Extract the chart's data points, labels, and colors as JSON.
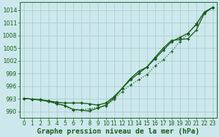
{
  "background_color": "#cce8ec",
  "grid_color": "#b0d4d8",
  "line_color": "#1a5c1a",
  "marker_color": "#1a5c1a",
  "xlabel": "Graphe pression niveau de la mer (hPa)",
  "xlabel_fontsize": 7.5,
  "tick_fontsize": 6.5,
  "xlim": [
    -0.5,
    23.5
  ],
  "ylim": [
    988.5,
    1015.8
  ],
  "yticks": [
    990,
    993,
    996,
    999,
    1002,
    1005,
    1008,
    1011,
    1014
  ],
  "xticks": [
    0,
    1,
    2,
    3,
    4,
    5,
    6,
    7,
    8,
    9,
    10,
    11,
    12,
    13,
    14,
    15,
    16,
    17,
    18,
    19,
    20,
    21,
    22,
    23
  ],
  "series1_x": [
    0,
    1,
    2,
    3,
    4,
    5,
    6,
    7,
    8,
    9,
    10,
    11,
    12,
    13,
    14,
    15,
    16,
    17,
    18,
    19,
    20,
    21,
    22,
    23
  ],
  "series1_y": [
    993.1,
    992.9,
    992.7,
    992.3,
    991.8,
    991.3,
    990.2,
    990.4,
    990.6,
    991.0,
    991.3,
    992.9,
    994.7,
    996.3,
    997.5,
    998.7,
    1000.8,
    1002.2,
    1004.2,
    1006.5,
    1008.3,
    1010.8,
    1013.5,
    1014.6
  ],
  "series2_x": [
    0,
    1,
    2,
    3,
    4,
    5,
    6,
    7,
    8,
    9,
    10,
    11,
    12,
    13,
    14,
    15,
    16,
    17,
    18,
    19,
    20,
    21,
    22,
    23
  ],
  "series2_y": [
    993.1,
    992.9,
    992.8,
    992.5,
    992.2,
    992.0,
    992.0,
    992.0,
    991.8,
    991.5,
    992.0,
    993.5,
    995.5,
    997.5,
    999.0,
    1000.5,
    1002.5,
    1004.5,
    1006.5,
    1007.5,
    1008.5,
    1010.5,
    1013.5,
    1014.6
  ],
  "series3_x": [
    0,
    1,
    2,
    3,
    4,
    5,
    6,
    7,
    8,
    9,
    10,
    11,
    12,
    13,
    14,
    15,
    16,
    17,
    18,
    19,
    20,
    21,
    22,
    23
  ],
  "series3_y": [
    993.1,
    992.9,
    992.7,
    992.4,
    991.9,
    991.4,
    990.5,
    990.3,
    990.1,
    990.8,
    991.5,
    993.2,
    995.5,
    997.8,
    999.5,
    1000.5,
    1002.8,
    1005.0,
    1006.8,
    1007.0,
    1007.2,
    1009.2,
    1013.2,
    1014.6
  ]
}
